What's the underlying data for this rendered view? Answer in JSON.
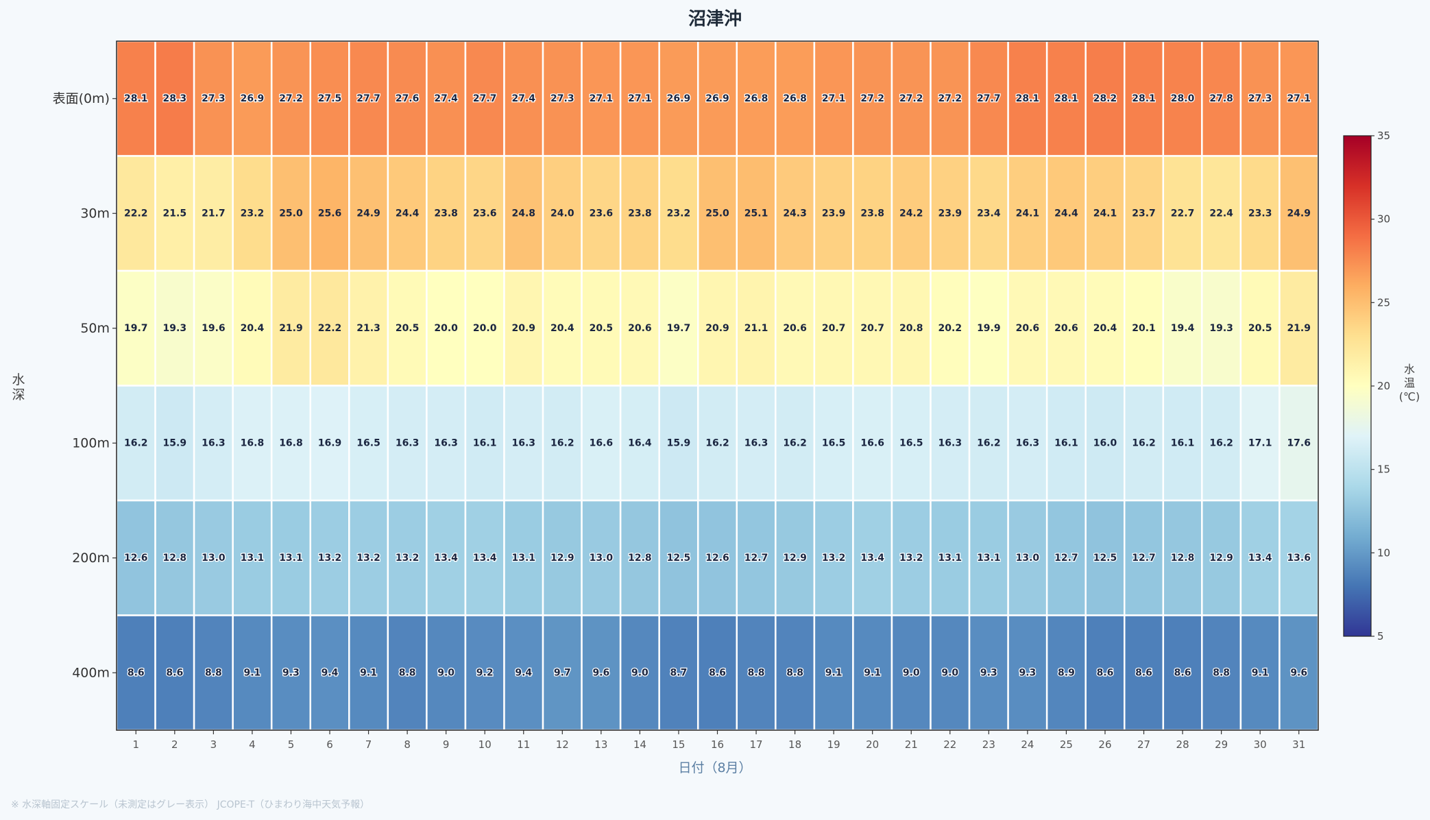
{
  "chart_data": {
    "type": "heatmap",
    "title": "沼津沖",
    "xlabel": "日付（8月）",
    "ylabel": "水深",
    "x_categories": [
      "1",
      "2",
      "3",
      "4",
      "5",
      "6",
      "7",
      "8",
      "9",
      "10",
      "11",
      "12",
      "13",
      "14",
      "15",
      "16",
      "17",
      "18",
      "19",
      "20",
      "21",
      "22",
      "23",
      "24",
      "25",
      "26",
      "27",
      "28",
      "29",
      "30",
      "31"
    ],
    "y_categories": [
      "表面(0m)",
      "30m",
      "50m",
      "100m",
      "200m",
      "400m"
    ],
    "values": [
      [
        28.1,
        28.3,
        27.3,
        26.9,
        27.2,
        27.5,
        27.7,
        27.6,
        27.4,
        27.7,
        27.4,
        27.3,
        27.1,
        27.1,
        26.9,
        26.9,
        26.8,
        26.8,
        27.1,
        27.2,
        27.2,
        27.2,
        27.7,
        28.1,
        28.1,
        28.2,
        28.1,
        28.0,
        27.8,
        27.3,
        27.1
      ],
      [
        22.2,
        21.5,
        21.7,
        23.2,
        25.0,
        25.6,
        24.9,
        24.4,
        23.8,
        23.6,
        24.8,
        24.0,
        23.6,
        23.8,
        23.2,
        25.0,
        25.1,
        24.3,
        23.9,
        23.8,
        24.2,
        23.9,
        23.4,
        24.1,
        24.4,
        24.1,
        23.7,
        22.7,
        22.4,
        23.3,
        24.9
      ],
      [
        19.7,
        19.3,
        19.6,
        20.4,
        21.9,
        22.2,
        21.3,
        20.5,
        20.0,
        20.0,
        20.9,
        20.4,
        20.5,
        20.6,
        19.7,
        20.9,
        21.1,
        20.6,
        20.7,
        20.7,
        20.8,
        20.2,
        19.9,
        20.6,
        20.6,
        20.4,
        20.1,
        19.4,
        19.3,
        20.5,
        21.9
      ],
      [
        16.2,
        15.9,
        16.3,
        16.8,
        16.8,
        16.9,
        16.5,
        16.3,
        16.3,
        16.1,
        16.3,
        16.2,
        16.6,
        16.4,
        15.9,
        16.2,
        16.3,
        16.2,
        16.5,
        16.6,
        16.5,
        16.3,
        16.2,
        16.3,
        16.1,
        16.0,
        16.2,
        16.1,
        16.2,
        17.1,
        17.6
      ],
      [
        12.6,
        12.8,
        13.0,
        13.1,
        13.1,
        13.2,
        13.2,
        13.2,
        13.4,
        13.4,
        13.1,
        12.9,
        13.0,
        12.8,
        12.5,
        12.6,
        12.7,
        12.9,
        13.2,
        13.4,
        13.2,
        13.1,
        13.1,
        13.0,
        12.7,
        12.5,
        12.7,
        12.8,
        12.9,
        13.4,
        13.6
      ],
      [
        8.6,
        8.6,
        8.8,
        9.1,
        9.3,
        9.4,
        9.1,
        8.8,
        9.0,
        9.2,
        9.4,
        9.7,
        9.6,
        9.0,
        8.7,
        8.6,
        8.8,
        8.8,
        9.1,
        9.1,
        9.0,
        9.0,
        9.3,
        9.3,
        8.9,
        8.6,
        8.6,
        8.6,
        8.8,
        9.1,
        9.6
      ]
    ],
    "colorbar": {
      "label": "水温(℃)",
      "range": [
        5,
        35
      ],
      "ticks": [
        "5",
        "10",
        "15",
        "20",
        "25",
        "30",
        "35"
      ],
      "colormap": "RdYlBu_r"
    },
    "grid": false
  },
  "footnote": "※ 水深軸固定スケール（未測定はグレー表示） JCOPE-T（ひまわり海中天気予報）",
  "colors": {
    "background": "#f5f9fc",
    "cell_border": "#ffffff",
    "title": "#1e2a38",
    "xlabel": "#5b7fa3"
  }
}
